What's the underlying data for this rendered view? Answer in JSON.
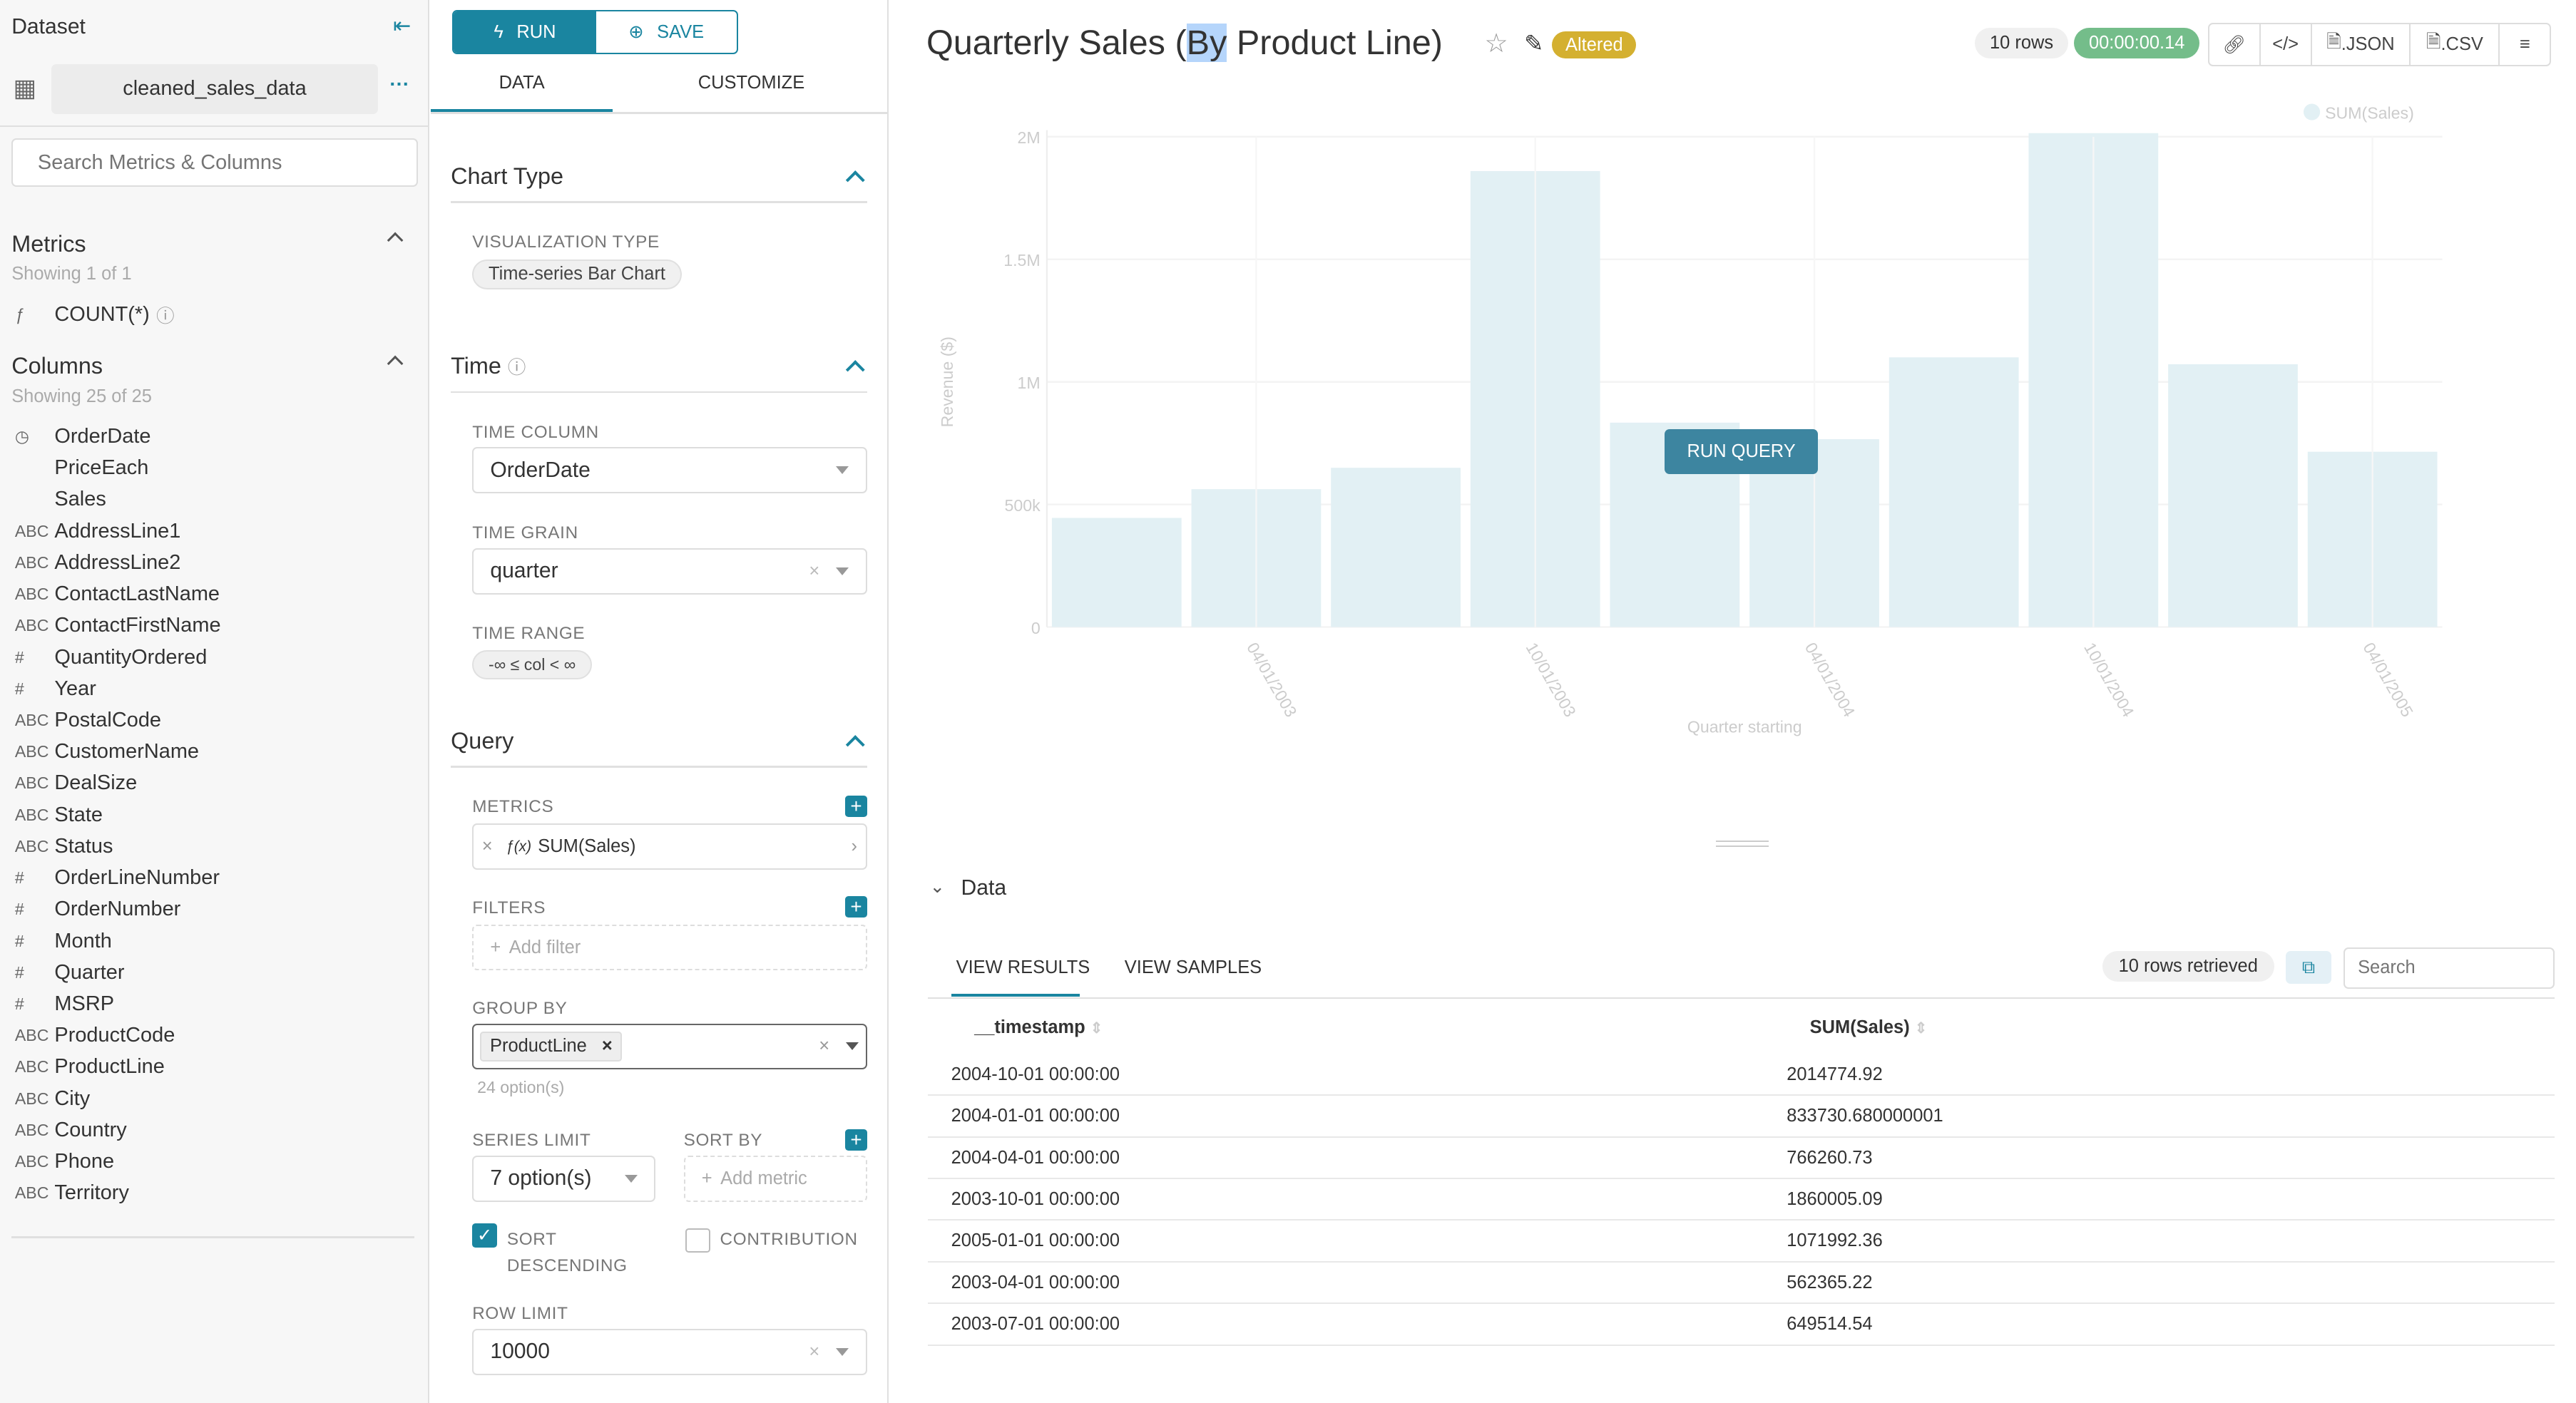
{
  "sidebar": {
    "title": "Dataset",
    "dataset_name": "cleaned_sales_data",
    "search_placeholder": "Search Metrics & Columns",
    "metrics_title": "Metrics",
    "metrics_count": "Showing 1 of 1",
    "metrics": [
      {
        "type": "ƒ",
        "name": "COUNT(*)"
      }
    ],
    "columns_title": "Columns",
    "columns_count": "Showing 25 of 25",
    "columns": [
      {
        "type": "◷",
        "name": "OrderDate"
      },
      {
        "type": "",
        "name": "PriceEach"
      },
      {
        "type": "",
        "name": "Sales"
      },
      {
        "type": "ABC",
        "name": "AddressLine1"
      },
      {
        "type": "ABC",
        "name": "AddressLine2"
      },
      {
        "type": "ABC",
        "name": "ContactLastName"
      },
      {
        "type": "ABC",
        "name": "ContactFirstName"
      },
      {
        "type": "#",
        "name": "QuantityOrdered"
      },
      {
        "type": "#",
        "name": "Year"
      },
      {
        "type": "ABC",
        "name": "PostalCode"
      },
      {
        "type": "ABC",
        "name": "CustomerName"
      },
      {
        "type": "ABC",
        "name": "DealSize"
      },
      {
        "type": "ABC",
        "name": "State"
      },
      {
        "type": "ABC",
        "name": "Status"
      },
      {
        "type": "#",
        "name": "OrderLineNumber"
      },
      {
        "type": "#",
        "name": "OrderNumber"
      },
      {
        "type": "#",
        "name": "Month"
      },
      {
        "type": "#",
        "name": "Quarter"
      },
      {
        "type": "#",
        "name": "MSRP"
      },
      {
        "type": "ABC",
        "name": "ProductCode"
      },
      {
        "type": "ABC",
        "name": "ProductLine"
      },
      {
        "type": "ABC",
        "name": "City"
      },
      {
        "type": "ABC",
        "name": "Country"
      },
      {
        "type": "ABC",
        "name": "Phone"
      },
      {
        "type": "ABC",
        "name": "Territory"
      }
    ]
  },
  "controls": {
    "run": "RUN",
    "save": "SAVE",
    "tab_data": "DATA",
    "tab_customize": "CUSTOMIZE",
    "chart_type": "Chart Type",
    "viz_label": "VISUALIZATION TYPE",
    "viz_value": "Time-series Bar Chart",
    "time": "Time",
    "time_column_label": "TIME COLUMN",
    "time_column": "OrderDate",
    "time_grain_label": "TIME GRAIN",
    "time_grain": "quarter",
    "time_range_label": "TIME RANGE",
    "time_range": "-∞ ≤ col < ∞",
    "query": "Query",
    "metrics_label": "METRICS",
    "metric_value": "SUM(Sales)",
    "filters_label": "FILTERS",
    "add_filter": "Add filter",
    "group_by_label": "GROUP BY",
    "group_by_value": "ProductLine",
    "group_by_options": "24 option(s)",
    "series_limit_label": "SERIES LIMIT",
    "series_limit": "7 option(s)",
    "sort_by_label": "SORT BY",
    "add_metric": "Add metric",
    "sort_desc": "SORT DESCENDING",
    "contribution": "CONTRIBUTION",
    "row_limit_label": "ROW LIMIT",
    "row_limit": "10000",
    "sort_desc_checked": true,
    "contribution_checked": false
  },
  "header": {
    "title_pre": "Quarterly Sales (",
    "title_sel": "By",
    "title_post": " Product Line)",
    "altered": "Altered",
    "rows": "10 rows",
    "duration": "00:00:00.14",
    "json": ".JSON",
    "csv": ".CSV"
  },
  "chart_data": {
    "type": "bar",
    "xlabel": "Quarter starting",
    "ylabel": "Revenue ($)",
    "legend": [
      "SUM(Sales)"
    ],
    "legend_position": "top-right",
    "ylim": [
      0,
      2000000
    ],
    "yticks": [
      "0",
      "500k",
      "1M",
      "1.5M",
      "2M"
    ],
    "xticks": [
      "04/01/2003",
      "10/01/2003",
      "04/01/2004",
      "10/01/2004",
      "04/01/2005"
    ],
    "categories": [
      "2003-01-01",
      "2003-04-01",
      "2003-07-01",
      "2003-10-01",
      "2004-01-01",
      "2004-04-01",
      "2004-07-01",
      "2004-10-01",
      "2005-01-01",
      "2005-04-01"
    ],
    "series": [
      {
        "name": "SUM(Sales)",
        "values": [
          445000,
          562365.22,
          649514.54,
          1860005.09,
          833730.68,
          766260.73,
          1100000,
          2014774.92,
          1071992.36,
          715000
        ]
      }
    ],
    "color": "#e2f0f4",
    "grid": true
  },
  "overlay": {
    "run_query": "RUN QUERY"
  },
  "data_panel": {
    "title": "Data",
    "tab_results": "VIEW RESULTS",
    "tab_samples": "VIEW SAMPLES",
    "retrieved": "10 rows retrieved",
    "search_placeholder": "Search",
    "columns": [
      "__timestamp",
      "SUM(Sales)"
    ],
    "rows": [
      [
        "2004-10-01 00:00:00",
        "2014774.92"
      ],
      [
        "2004-01-01 00:00:00",
        "833730.680000001"
      ],
      [
        "2004-04-01 00:00:00",
        "766260.73"
      ],
      [
        "2003-10-01 00:00:00",
        "1860005.09"
      ],
      [
        "2005-01-01 00:00:00",
        "1071992.36"
      ],
      [
        "2003-04-01 00:00:00",
        "562365.22"
      ],
      [
        "2003-07-01 00:00:00",
        "649514.54"
      ]
    ]
  }
}
